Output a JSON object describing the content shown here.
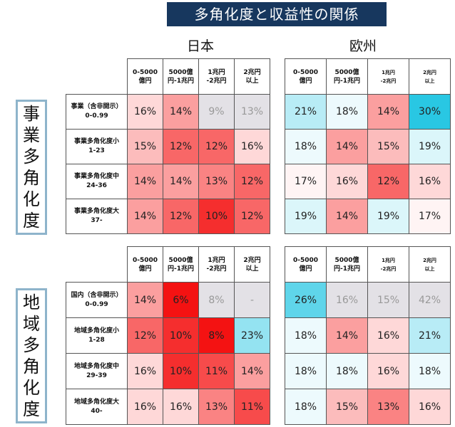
{
  "title": "多角化度と収益性の関係",
  "regions": [
    "日本",
    "欧州"
  ],
  "sections": [
    {
      "label": [
        "事",
        "業",
        "多",
        "角",
        "化",
        "度"
      ]
    },
    {
      "label": [
        "地",
        "域",
        "多",
        "角",
        "化",
        "度"
      ]
    }
  ],
  "colors": {
    "title_bg": "#17375e",
    "frame": "#8eb4cb",
    "low_gray": "#e3e1e6",
    "high_cyan": "#29c7e3"
  },
  "chart_data": [
    {
      "type": "heatmap",
      "section": "事業多角化度",
      "region": "日本",
      "columns": [
        "0-5000\n億円",
        "5000億\n円-1兆円",
        "1兆円\n-2兆円",
        "2兆円\n以上"
      ],
      "rows": [
        "事業（含非開示）\n0-0.99",
        "事業多角化度小\n1-23",
        "事業多角化度中\n24-36",
        "事業多角化度大\n37-"
      ],
      "values": [
        [
          16,
          14,
          9,
          13
        ],
        [
          15,
          12,
          12,
          16
        ],
        [
          14,
          14,
          13,
          12
        ],
        [
          14,
          12,
          10,
          12
        ]
      ],
      "display": [
        [
          "16%",
          "14%",
          "9%",
          "13%"
        ],
        [
          "15%",
          "12%",
          "12%",
          "16%"
        ],
        [
          "14%",
          "14%",
          "13%",
          "12%"
        ],
        [
          "14%",
          "12%",
          "10%",
          "12%"
        ]
      ],
      "grayed": [
        [
          false,
          false,
          true,
          true
        ],
        [
          false,
          false,
          false,
          false
        ],
        [
          false,
          false,
          false,
          false
        ],
        [
          false,
          false,
          false,
          false
        ]
      ]
    },
    {
      "type": "heatmap",
      "section": "事業多角化度",
      "region": "欧州",
      "columns": [
        "0-5000\n億円",
        "5000億\n円-1兆円",
        "1兆円\n-2兆円",
        "2兆円\n以上"
      ],
      "rows": [
        "事業（含非開示）\n0-0.99",
        "事業多角化度小\n1-23",
        "事業多角化度中\n24-36",
        "事業多角化度大\n37-"
      ],
      "values": [
        [
          21,
          18,
          14,
          30
        ],
        [
          18,
          14,
          15,
          19
        ],
        [
          17,
          16,
          12,
          16
        ],
        [
          19,
          14,
          19,
          17
        ]
      ],
      "display": [
        [
          "21%",
          "18%",
          "14%",
          "30%"
        ],
        [
          "18%",
          "14%",
          "15%",
          "19%"
        ],
        [
          "17%",
          "16%",
          "12%",
          "16%"
        ],
        [
          "19%",
          "14%",
          "19%",
          "17%"
        ]
      ],
      "grayed": [
        [
          false,
          false,
          false,
          false
        ],
        [
          false,
          false,
          false,
          false
        ],
        [
          false,
          false,
          false,
          false
        ],
        [
          false,
          false,
          false,
          false
        ]
      ]
    },
    {
      "type": "heatmap",
      "section": "地域多角化度",
      "region": "日本",
      "columns": [
        "0-5000\n億円",
        "5000億\n円-1兆円",
        "1兆円\n-2兆円",
        "2兆円\n以上"
      ],
      "rows": [
        "国内（含非開示）\n0-0.99",
        "地域多角化度小\n1-28",
        "地域多角化度中\n29-39",
        "地域多角化度大\n40-"
      ],
      "values": [
        [
          14,
          6,
          8,
          null
        ],
        [
          12,
          10,
          8,
          23
        ],
        [
          16,
          10,
          11,
          14
        ],
        [
          16,
          16,
          13,
          11
        ]
      ],
      "display": [
        [
          "14%",
          "6%",
          "8%",
          "-"
        ],
        [
          "12%",
          "10%",
          "8%",
          "23%"
        ],
        [
          "16%",
          "10%",
          "11%",
          "14%"
        ],
        [
          "16%",
          "16%",
          "13%",
          "11%"
        ]
      ],
      "grayed": [
        [
          false,
          false,
          true,
          true
        ],
        [
          false,
          false,
          false,
          false
        ],
        [
          false,
          false,
          false,
          false
        ],
        [
          false,
          false,
          false,
          false
        ]
      ]
    },
    {
      "type": "heatmap",
      "section": "地域多角化度",
      "region": "欧州",
      "columns": [
        "0-5000\n億円",
        "5000億\n円-1兆円",
        "1兆円\n-2兆円",
        "2兆円\n以上"
      ],
      "rows": [
        "国内（含非開示）\n0-0.99",
        "地域多角化度小\n1-28",
        "地域多角化度中\n29-39",
        "地域多角化度大\n40-"
      ],
      "values": [
        [
          26,
          16,
          15,
          42
        ],
        [
          18,
          14,
          16,
          21
        ],
        [
          18,
          18,
          16,
          18
        ],
        [
          18,
          15,
          13,
          16
        ]
      ],
      "display": [
        [
          "26%",
          "16%",
          "15%",
          "42%"
        ],
        [
          "18%",
          "14%",
          "16%",
          "21%"
        ],
        [
          "18%",
          "18%",
          "16%",
          "18%"
        ],
        [
          "18%",
          "15%",
          "13%",
          "16%"
        ]
      ],
      "grayed": [
        [
          false,
          true,
          true,
          true
        ],
        [
          false,
          false,
          false,
          false
        ],
        [
          false,
          false,
          false,
          false
        ],
        [
          false,
          false,
          false,
          false
        ]
      ]
    }
  ]
}
